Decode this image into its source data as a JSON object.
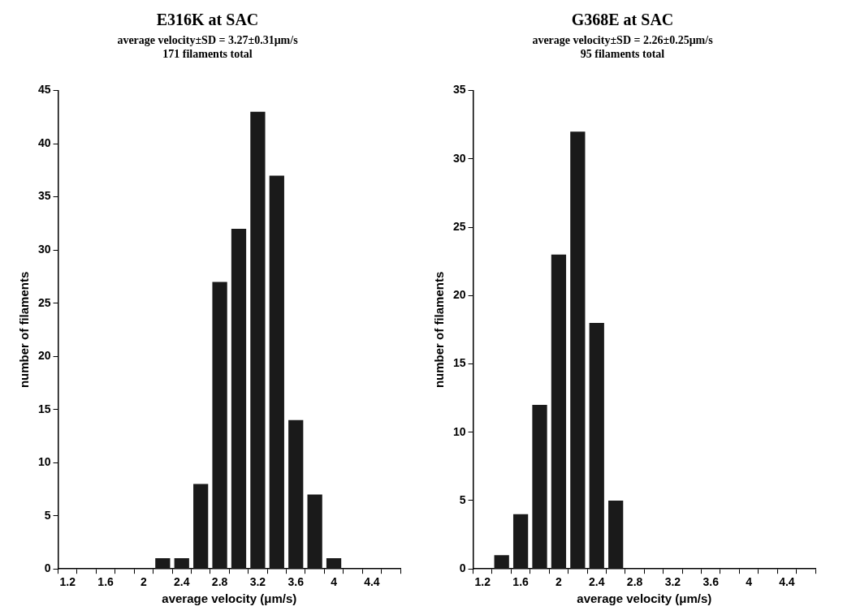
{
  "chart_data": [
    {
      "type": "bar",
      "title": "E316K at SAC",
      "subtitle": "average velocity±SD = 3.27±0.31μm/s\n171 filaments total",
      "xlabel": "average velocity (μm/s)",
      "ylabel": "number of filaments",
      "categories": [
        "1.2",
        null,
        "1.6",
        null,
        "2",
        null,
        "2.4",
        null,
        "2.8",
        null,
        "3.2",
        null,
        "3.6",
        null,
        "4",
        null,
        "4.4",
        null
      ],
      "values": [
        0,
        0,
        0,
        0,
        0,
        1,
        1,
        8,
        27,
        32,
        43,
        37,
        14,
        7,
        1,
        0,
        0,
        0
      ],
      "color": "#1a1a1a",
      "ylim": [
        0,
        45
      ],
      "yticks": [
        0,
        5,
        10,
        15,
        20,
        25,
        30,
        35,
        40,
        45
      ],
      "grid": false,
      "legend": false
    },
    {
      "type": "bar",
      "title": "G368E at SAC",
      "subtitle": "average velocity±SD = 2.26±0.25μm/s\n95 filaments total",
      "xlabel": "average velocity (μm/s)",
      "ylabel": "number of filaments",
      "categories": [
        "1.2",
        null,
        "1.6",
        null,
        "2",
        null,
        "2.4",
        null,
        "2.8",
        null,
        "3.2",
        null,
        "3.6",
        null,
        "4",
        null,
        "4.4",
        null
      ],
      "values": [
        0,
        1,
        4,
        12,
        23,
        32,
        18,
        5,
        0,
        0,
        0,
        0,
        0,
        0,
        0,
        0,
        0,
        0
      ],
      "color": "#1a1a1a",
      "ylim": [
        0,
        35
      ],
      "yticks": [
        0,
        5,
        10,
        15,
        20,
        25,
        30,
        35
      ],
      "grid": false,
      "legend": false
    }
  ]
}
